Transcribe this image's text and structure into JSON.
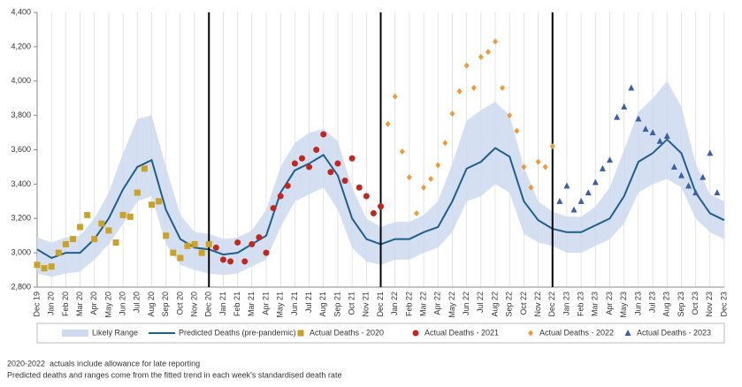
{
  "chart_data": {
    "type": "line",
    "x": [
      0,
      1,
      2,
      3,
      4,
      5,
      6,
      7,
      8,
      9,
      10,
      11,
      12,
      13,
      14,
      15,
      16,
      17,
      18,
      19,
      20,
      21,
      22,
      23,
      24,
      25,
      26,
      27,
      28,
      29,
      30,
      31,
      32,
      33,
      34,
      35,
      36,
      37,
      38,
      39,
      40,
      41,
      42,
      43,
      44,
      45,
      46,
      47,
      48
    ],
    "xlim": [
      0,
      48
    ],
    "xticks": [
      {
        "value": 0,
        "label": "Dec 19"
      },
      {
        "value": 1,
        "label": "Jan 20"
      },
      {
        "value": 2,
        "label": "Feb 20"
      },
      {
        "value": 3,
        "label": "Mar 20"
      },
      {
        "value": 4,
        "label": "Apr 20"
      },
      {
        "value": 5,
        "label": "May 20"
      },
      {
        "value": 6,
        "label": "Jun 20"
      },
      {
        "value": 7,
        "label": "Jul 20"
      },
      {
        "value": 8,
        "label": "Aug 20"
      },
      {
        "value": 9,
        "label": "Sep 20"
      },
      {
        "value": 10,
        "label": "Oct 20"
      },
      {
        "value": 11,
        "label": "Nov 20"
      },
      {
        "value": 12,
        "label": "Dec 20"
      },
      {
        "value": 13,
        "label": "Jan 21"
      },
      {
        "value": 14,
        "label": "Feb 21"
      },
      {
        "value": 15,
        "label": "Mar 21"
      },
      {
        "value": 16,
        "label": "Apr 21"
      },
      {
        "value": 17,
        "label": "May 21"
      },
      {
        "value": 18,
        "label": "Jun 21"
      },
      {
        "value": 19,
        "label": "Jul 21"
      },
      {
        "value": 20,
        "label": "Aug 21"
      },
      {
        "value": 21,
        "label": "Sep 21"
      },
      {
        "value": 22,
        "label": "Oct 21"
      },
      {
        "value": 23,
        "label": "Nov 21"
      },
      {
        "value": 24,
        "label": "Dec 21"
      },
      {
        "value": 25,
        "label": "Jan 22"
      },
      {
        "value": 26,
        "label": "Feb 22"
      },
      {
        "value": 27,
        "label": "Mar 22"
      },
      {
        "value": 28,
        "label": "Apr 22"
      },
      {
        "value": 29,
        "label": "May 22"
      },
      {
        "value": 30,
        "label": "Jun 22"
      },
      {
        "value": 31,
        "label": "Jul 22"
      },
      {
        "value": 32,
        "label": "Aug 22"
      },
      {
        "value": 33,
        "label": "Sep 22"
      },
      {
        "value": 34,
        "label": "Oct 22"
      },
      {
        "value": 35,
        "label": "Nov 22"
      },
      {
        "value": 36,
        "label": "Dec 22"
      },
      {
        "value": 37,
        "label": "Jan 23"
      },
      {
        "value": 38,
        "label": "Feb 23"
      },
      {
        "value": 39,
        "label": "Mar 23"
      },
      {
        "value": 40,
        "label": "Apr 23"
      },
      {
        "value": 41,
        "label": "May 23"
      },
      {
        "value": 42,
        "label": "Jun 23"
      },
      {
        "value": 43,
        "label": "Jul 23"
      },
      {
        "value": 44,
        "label": "Aug 23"
      },
      {
        "value": 45,
        "label": "Sep 23"
      },
      {
        "value": 46,
        "label": "Oct 23"
      },
      {
        "value": 47,
        "label": "Nov 23"
      },
      {
        "value": 48,
        "label": "Dec 23"
      }
    ],
    "ylim": [
      2800,
      4400
    ],
    "yticks": [
      {
        "value": 2800,
        "label": "2,800"
      },
      {
        "value": 3000,
        "label": "3,000"
      },
      {
        "value": 3200,
        "label": "3,200"
      },
      {
        "value": 3400,
        "label": "3,400"
      },
      {
        "value": 3600,
        "label": "3,600"
      },
      {
        "value": 3800,
        "label": "3,800"
      },
      {
        "value": 4000,
        "label": "4,000"
      },
      {
        "value": 4200,
        "label": "4,200"
      },
      {
        "value": 4400,
        "label": "4,400"
      }
    ],
    "grid": true,
    "vlines": [
      12,
      24,
      36
    ],
    "series": [
      {
        "name": "Likely Range",
        "kind": "band",
        "color": "#cdd9ef",
        "upper": [
          3090,
          3060,
          3090,
          3100,
          3200,
          3350,
          3580,
          3780,
          3800,
          3500,
          3220,
          3120,
          3110,
          3080,
          3090,
          3130,
          3250,
          3500,
          3640,
          3700,
          3720,
          3650,
          3380,
          3200,
          3150,
          3180,
          3180,
          3220,
          3300,
          3520,
          3770,
          3830,
          3880,
          3800,
          3500,
          3300,
          3240,
          3210,
          3210,
          3270,
          3380,
          3600,
          3820,
          3900,
          4000,
          3850,
          3520,
          3340,
          3300
        ],
        "lower": [
          2880,
          2860,
          2880,
          2890,
          2960,
          3050,
          3170,
          3300,
          3330,
          3050,
          2930,
          2900,
          2880,
          2870,
          2880,
          2920,
          2960,
          3150,
          3300,
          3340,
          3380,
          3250,
          3030,
          2950,
          2930,
          2960,
          2960,
          3000,
          3030,
          3120,
          3300,
          3330,
          3400,
          3350,
          3110,
          3060,
          3040,
          3000,
          3000,
          3040,
          3080,
          3170,
          3350,
          3400,
          3430,
          3380,
          3200,
          3120,
          3080
        ]
      },
      {
        "name": "Predicted Deaths (pre-pandemic)",
        "kind": "line",
        "color": "#1f5f8b",
        "values": [
          3020,
          2970,
          3000,
          3000,
          3080,
          3200,
          3370,
          3500,
          3540,
          3250,
          3080,
          3030,
          3020,
          2990,
          3000,
          3050,
          3100,
          3350,
          3480,
          3520,
          3570,
          3450,
          3200,
          3080,
          3050,
          3080,
          3080,
          3120,
          3150,
          3300,
          3490,
          3530,
          3610,
          3560,
          3300,
          3190,
          3140,
          3120,
          3120,
          3160,
          3200,
          3330,
          3530,
          3580,
          3660,
          3580,
          3350,
          3230,
          3190
        ]
      },
      {
        "name": "Actual Deaths - 2020",
        "kind": "scatter",
        "marker": "square",
        "color": "#c9a227",
        "x": [
          0,
          0.5,
          1,
          1.5,
          2,
          2.5,
          3,
          3.5,
          4,
          4.5,
          5,
          5.5,
          6,
          6.5,
          7,
          7.5,
          8,
          8.5,
          9,
          9.5,
          10,
          10.5,
          11,
          11.5,
          12
        ],
        "values": [
          2930,
          2910,
          2920,
          3000,
          3050,
          3080,
          3150,
          3220,
          3080,
          3170,
          3130,
          3060,
          3220,
          3210,
          3350,
          3490,
          3280,
          3300,
          3100,
          3000,
          2970,
          3040,
          3050,
          3000,
          3050
        ]
      },
      {
        "name": "Actual Deaths - 2021",
        "kind": "scatter",
        "marker": "circle",
        "color": "#c0281e",
        "x": [
          12.5,
          13,
          13.5,
          14,
          14.5,
          15,
          15.5,
          16,
          16.5,
          17,
          17.5,
          18,
          18.5,
          19,
          19.5,
          20,
          20.5,
          21,
          21.5,
          22,
          22.5,
          23,
          23.5,
          24
        ],
        "values": [
          3030,
          2960,
          2950,
          3060,
          2950,
          3050,
          3090,
          3000,
          3260,
          3330,
          3390,
          3520,
          3550,
          3500,
          3600,
          3690,
          3470,
          3520,
          3420,
          3550,
          3380,
          3330,
          3230,
          3270
        ]
      },
      {
        "name": "Actual Deaths - 2022",
        "kind": "scatter",
        "marker": "diamond",
        "color": "#ee9a3a",
        "x": [
          24.5,
          25,
          25.5,
          26,
          26.5,
          27,
          27.5,
          28,
          28.5,
          29,
          29.5,
          30,
          30.5,
          31,
          31.5,
          32,
          32.5,
          33,
          33.5,
          34,
          34.5,
          35,
          35.5,
          36
        ],
        "values": [
          3750,
          3910,
          3590,
          3440,
          3230,
          3380,
          3430,
          3510,
          3640,
          3810,
          3940,
          4090,
          3960,
          4140,
          4170,
          4230,
          3960,
          3800,
          3710,
          3500,
          3380,
          3530,
          3500,
          3620
        ]
      },
      {
        "name": "Actual Deaths - 2023",
        "kind": "scatter",
        "marker": "triangle",
        "color": "#3a5fa8",
        "x": [
          36.5,
          37,
          37.5,
          38,
          38.5,
          39,
          39.5,
          40,
          40.5,
          41,
          41.5,
          42,
          42.5,
          43,
          43.5,
          44,
          44.5,
          45,
          45.5,
          46,
          46.5,
          47,
          47.5
        ],
        "values": [
          3300,
          3390,
          3250,
          3300,
          3350,
          3410,
          3490,
          3540,
          3790,
          3850,
          3960,
          3780,
          3720,
          3700,
          3650,
          3680,
          3500,
          3450,
          3390,
          3350,
          3440,
          3580,
          3350
        ]
      }
    ],
    "notes": [
      "2020-2022  actuals include allowance for late reporting",
      "Predicted deaths and ranges come from the fitted trend in each week's standardised death rate"
    ]
  }
}
